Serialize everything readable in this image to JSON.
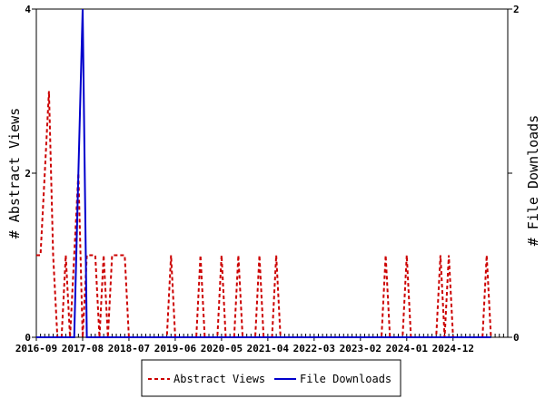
{
  "chart_data": {
    "type": "line",
    "y_left_label": "# Abstract Views",
    "y_right_label": "# File Downloads",
    "y_left_range": [
      0,
      4
    ],
    "y_right_range": [
      0,
      2
    ],
    "y_left_ticks": [
      "0",
      "2",
      "4"
    ],
    "y_right_ticks": [
      "0",
      "1",
      "2"
    ],
    "x_tick_labels": [
      "2016-09",
      "2017-08",
      "2018-07",
      "2019-06",
      "2020-05",
      "2021-04",
      "2022-03",
      "2023-02",
      "2024-01",
      "2024-12"
    ],
    "x_range": [
      "2016-09",
      "2026-01"
    ],
    "legend_position": "bottom-center",
    "grid": false,
    "colors": {
      "abstract_views": "#cc0000",
      "file_downloads": "#0000cc"
    },
    "series": [
      {
        "name": "Abstract Views",
        "axis": "left",
        "style": "dashed",
        "points": [
          [
            "2016-09",
            1
          ],
          [
            "2016-10",
            1
          ],
          [
            "2016-11",
            2
          ],
          [
            "2016-12",
            3
          ],
          [
            "2017-01",
            1
          ],
          [
            "2017-02",
            0
          ],
          [
            "2017-03",
            0
          ],
          [
            "2017-04",
            1
          ],
          [
            "2017-05",
            0
          ],
          [
            "2017-06",
            1
          ],
          [
            "2017-07",
            2
          ],
          [
            "2017-08",
            0
          ],
          [
            "2017-09",
            1
          ],
          [
            "2017-10",
            1
          ],
          [
            "2017-11",
            1
          ],
          [
            "2017-12",
            0
          ],
          [
            "2018-01",
            1
          ],
          [
            "2018-02",
            0
          ],
          [
            "2018-03",
            1
          ],
          [
            "2018-04",
            1
          ],
          [
            "2018-05",
            1
          ],
          [
            "2018-06",
            1
          ],
          [
            "2018-07",
            0
          ],
          [
            "2018-08",
            0
          ],
          [
            "2018-09",
            0
          ],
          [
            "2018-10",
            0
          ],
          [
            "2018-11",
            0
          ],
          [
            "2018-12",
            0
          ],
          [
            "2019-01",
            0
          ],
          [
            "2019-02",
            0
          ],
          [
            "2019-03",
            0
          ],
          [
            "2019-04",
            0
          ],
          [
            "2019-05",
            1
          ],
          [
            "2019-06",
            0
          ],
          [
            "2019-07",
            0
          ],
          [
            "2019-08",
            0
          ],
          [
            "2019-09",
            0
          ],
          [
            "2019-10",
            0
          ],
          [
            "2019-11",
            0
          ],
          [
            "2019-12",
            1
          ],
          [
            "2020-01",
            0
          ],
          [
            "2020-02",
            0
          ],
          [
            "2020-03",
            0
          ],
          [
            "2020-04",
            0
          ],
          [
            "2020-05",
            1
          ],
          [
            "2020-06",
            0
          ],
          [
            "2020-07",
            0
          ],
          [
            "2020-08",
            0
          ],
          [
            "2020-09",
            1
          ],
          [
            "2020-10",
            0
          ],
          [
            "2020-11",
            0
          ],
          [
            "2020-12",
            0
          ],
          [
            "2021-01",
            0
          ],
          [
            "2021-02",
            1
          ],
          [
            "2021-03",
            0
          ],
          [
            "2021-04",
            0
          ],
          [
            "2021-05",
            0
          ],
          [
            "2021-06",
            1
          ],
          [
            "2021-07",
            0
          ],
          [
            "2021-08",
            0
          ],
          [
            "2021-09",
            0
          ],
          [
            "2021-10",
            0
          ],
          [
            "2021-11",
            0
          ],
          [
            "2021-12",
            0
          ],
          [
            "2022-01",
            0
          ],
          [
            "2022-02",
            0
          ],
          [
            "2022-03",
            0
          ],
          [
            "2022-04",
            0
          ],
          [
            "2022-05",
            0
          ],
          [
            "2022-06",
            0
          ],
          [
            "2022-07",
            0
          ],
          [
            "2022-08",
            0
          ],
          [
            "2022-09",
            0
          ],
          [
            "2022-10",
            0
          ],
          [
            "2022-11",
            0
          ],
          [
            "2022-12",
            0
          ],
          [
            "2023-01",
            0
          ],
          [
            "2023-02",
            0
          ],
          [
            "2023-03",
            0
          ],
          [
            "2023-04",
            0
          ],
          [
            "2023-05",
            0
          ],
          [
            "2023-06",
            0
          ],
          [
            "2023-07",
            0
          ],
          [
            "2023-08",
            1
          ],
          [
            "2023-09",
            0
          ],
          [
            "2023-10",
            0
          ],
          [
            "2023-11",
            0
          ],
          [
            "2023-12",
            0
          ],
          [
            "2024-01",
            1
          ],
          [
            "2024-02",
            0
          ],
          [
            "2024-03",
            0
          ],
          [
            "2024-04",
            0
          ],
          [
            "2024-05",
            0
          ],
          [
            "2024-06",
            0
          ],
          [
            "2024-07",
            0
          ],
          [
            "2024-08",
            0
          ],
          [
            "2024-09",
            1
          ],
          [
            "2024-10",
            0
          ],
          [
            "2024-11",
            1
          ],
          [
            "2024-12",
            0
          ],
          [
            "2025-01",
            0
          ],
          [
            "2025-02",
            0
          ],
          [
            "2025-03",
            0
          ],
          [
            "2025-04",
            0
          ],
          [
            "2025-05",
            0
          ],
          [
            "2025-06",
            0
          ],
          [
            "2025-07",
            0
          ],
          [
            "2025-08",
            1
          ],
          [
            "2025-09",
            0
          ]
        ]
      },
      {
        "name": "File Downloads",
        "axis": "right",
        "style": "solid",
        "points": [
          [
            "2016-09",
            0
          ],
          [
            "2017-06",
            0
          ],
          [
            "2017-07",
            1
          ],
          [
            "2017-08",
            2
          ],
          [
            "2017-09",
            0
          ],
          [
            "2025-09",
            0
          ]
        ]
      }
    ]
  }
}
